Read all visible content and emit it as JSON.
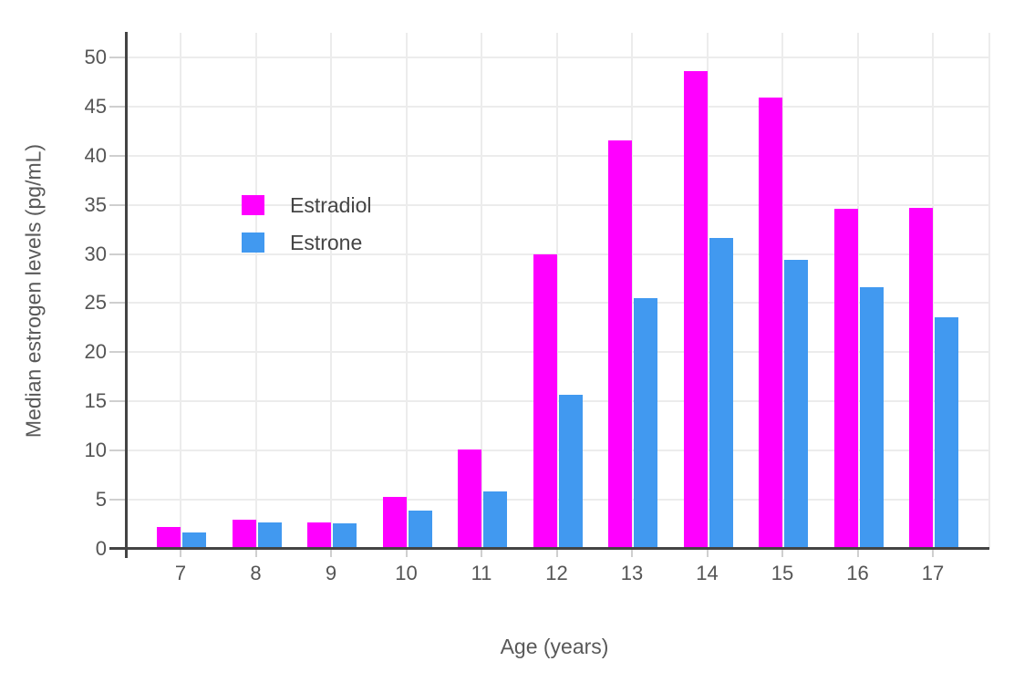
{
  "chart_data": {
    "type": "bar",
    "title": "",
    "xlabel": "Age (years)",
    "ylabel": "Median estrogen levels (pg/mL)",
    "categories": [
      "7",
      "8",
      "9",
      "10",
      "11",
      "12",
      "13",
      "14",
      "15",
      "16",
      "17"
    ],
    "series": [
      {
        "name": "Estradiol",
        "color": "#ff00ff",
        "values": [
          2.2,
          3.0,
          2.7,
          5.3,
          10.1,
          30.0,
          41.6,
          48.6,
          45.9,
          34.6,
          34.7
        ]
      },
      {
        "name": "Estrone",
        "color": "#4199f0",
        "values": [
          1.7,
          2.7,
          2.6,
          3.9,
          5.8,
          15.7,
          25.5,
          31.6,
          29.4,
          26.6,
          23.6
        ]
      }
    ],
    "yticks": [
      0,
      5,
      10,
      15,
      20,
      25,
      30,
      35,
      40,
      45,
      50
    ],
    "ylim": [
      0,
      52.5
    ],
    "grid": true,
    "legend_position": "inside-top-left",
    "colors": {
      "estradiol": "#ff00ff",
      "estrone": "#4199f0",
      "axis": "#444444",
      "gridline": "#ececec",
      "tick_label": "#555555",
      "axis_title": "#595959",
      "background": "#ffffff"
    }
  }
}
